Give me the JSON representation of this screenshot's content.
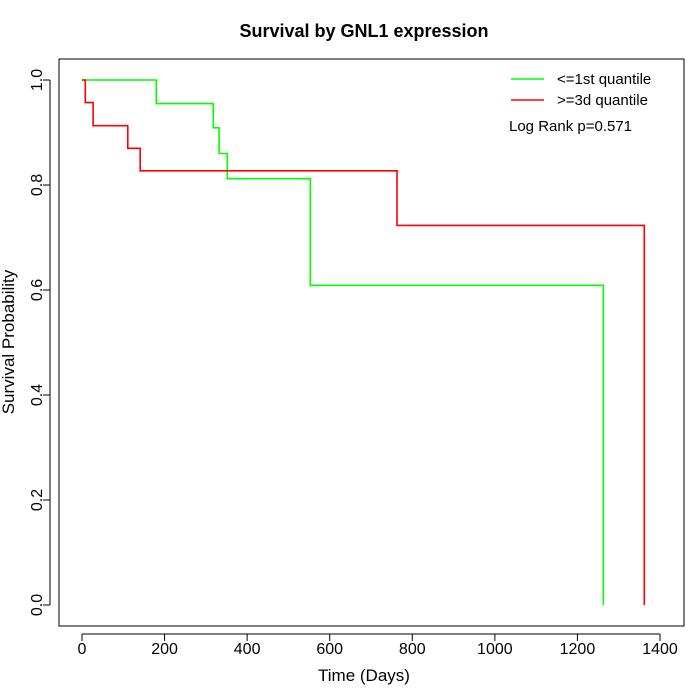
{
  "chart_data": {
    "type": "line",
    "step": true,
    "title": "Survival by GNL1 expression",
    "xlabel": "Time (Days)",
    "ylabel": "Survival Probability",
    "xlim": [
      0,
      1400
    ],
    "ylim": [
      0,
      1
    ],
    "xticks": [
      0,
      200,
      400,
      600,
      800,
      1000,
      1200,
      1400
    ],
    "yticks": [
      0.0,
      0.2,
      0.4,
      0.6,
      0.8,
      1.0
    ],
    "xtick_labels": [
      "0",
      "200",
      "400",
      "600",
      "800",
      "1000",
      "1200",
      "1400"
    ],
    "ytick_labels": [
      "0.0",
      "0.2",
      "0.4",
      "0.6",
      "0.8",
      "1.0"
    ],
    "legend_position": "top-right",
    "annotation": "Log Rank p=0.571",
    "series": [
      {
        "name": "<=1st quantile",
        "color": "#00ff00",
        "points": [
          [
            0,
            1.0
          ],
          [
            180,
            1.0
          ],
          [
            180,
            0.955
          ],
          [
            318,
            0.955
          ],
          [
            318,
            0.909
          ],
          [
            332,
            0.909
          ],
          [
            332,
            0.86
          ],
          [
            352,
            0.86
          ],
          [
            352,
            0.812
          ],
          [
            553,
            0.812
          ],
          [
            553,
            0.609
          ],
          [
            1263,
            0.609
          ],
          [
            1263,
            0.0
          ]
        ]
      },
      {
        "name": ">=3d quantile",
        "color": "#ff0000",
        "points": [
          [
            0,
            1.0
          ],
          [
            8,
            1.0
          ],
          [
            8,
            0.957
          ],
          [
            27,
            0.957
          ],
          [
            27,
            0.913
          ],
          [
            111,
            0.913
          ],
          [
            111,
            0.87
          ],
          [
            141,
            0.87
          ],
          [
            141,
            0.827
          ],
          [
            763,
            0.827
          ],
          [
            763,
            0.723
          ],
          [
            1362,
            0.723
          ],
          [
            1362,
            0.0
          ]
        ]
      }
    ]
  }
}
